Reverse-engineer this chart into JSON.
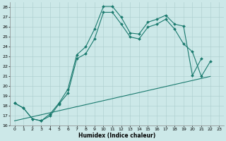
{
  "title": "",
  "xlabel": "Humidex (Indice chaleur)",
  "bg_color": "#cce8e8",
  "grid_color": "#aacccc",
  "line_color": "#1a7a6e",
  "xlim": [
    -0.5,
    23.5
  ],
  "ylim": [
    16,
    28.5
  ],
  "xtick_labels": [
    "0",
    "1",
    "2",
    "3",
    "4",
    "5",
    "6",
    "7",
    "8",
    "9",
    "10",
    "11",
    "12",
    "13",
    "14",
    "15",
    "16",
    "17",
    "18",
    "19",
    "20",
    "21",
    "22",
    "23"
  ],
  "ytick_labels": [
    "16",
    "17",
    "18",
    "19",
    "20",
    "21",
    "22",
    "23",
    "24",
    "25",
    "26",
    "27",
    "28"
  ],
  "line1_x": [
    0,
    1,
    2,
    3,
    4,
    5,
    6,
    7,
    8,
    9,
    10,
    11,
    12,
    13,
    14,
    15,
    16,
    17,
    18,
    19,
    20,
    21
  ],
  "line1_y": [
    18.3,
    17.8,
    16.7,
    16.5,
    17.2,
    18.3,
    19.7,
    23.2,
    24.0,
    25.8,
    28.1,
    28.1,
    27.0,
    25.4,
    25.3,
    26.5,
    26.8,
    27.2,
    26.3,
    26.1,
    21.1,
    22.8
  ],
  "line2_x": [
    0,
    1,
    2,
    3,
    4,
    5,
    6,
    7,
    8,
    9,
    10,
    11,
    12,
    13,
    14,
    15,
    16,
    17,
    18,
    19,
    20,
    21,
    22
  ],
  "line2_y": [
    18.3,
    17.8,
    16.7,
    16.5,
    17.0,
    18.2,
    19.3,
    22.8,
    23.3,
    24.8,
    27.5,
    27.5,
    26.3,
    25.0,
    24.8,
    26.0,
    26.3,
    26.8,
    25.8,
    24.3,
    23.5,
    21.0,
    22.5
  ],
  "line3_x": [
    0,
    22
  ],
  "line3_y": [
    16.5,
    21.0
  ]
}
